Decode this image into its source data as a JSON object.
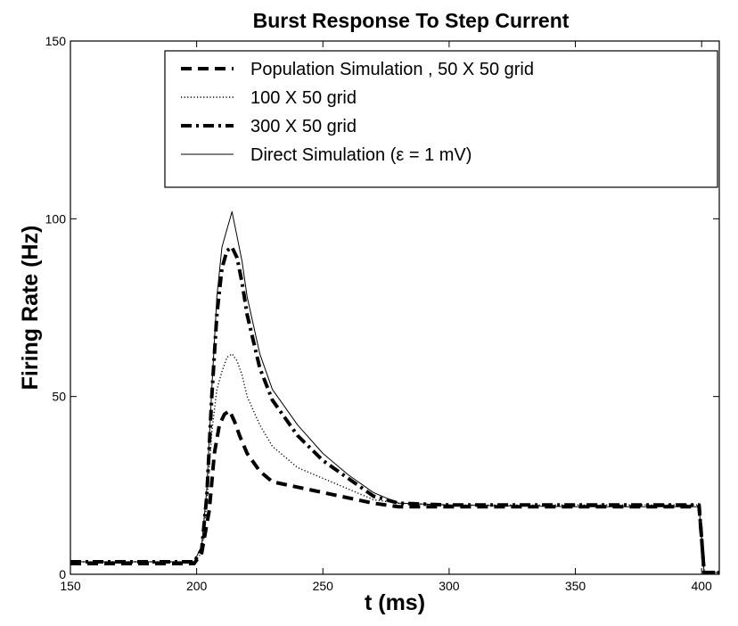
{
  "chart_data": {
    "type": "line",
    "title": "Burst Response To Step Current",
    "xlabel": "t  (ms)",
    "ylabel": "Firing Rate (Hz)",
    "xlim": [
      150,
      407
    ],
    "ylim": [
      0,
      150
    ],
    "xticks": [
      150,
      200,
      250,
      300,
      350,
      400
    ],
    "yticks": [
      0,
      50,
      100,
      150
    ],
    "grid": false,
    "legend_position": "top-right",
    "series": [
      {
        "name": "Population Simulation , 50 X 50 grid",
        "style": "dashed",
        "x": [
          150,
          199,
          202,
          205,
          207,
          209,
          211,
          213,
          215,
          217,
          220,
          225,
          230,
          240,
          250,
          260,
          270,
          280,
          290,
          300,
          350,
          399,
          400,
          401,
          407
        ],
        "y": [
          3,
          3,
          6,
          18,
          34,
          42,
          45,
          46,
          43,
          39,
          34,
          29,
          26,
          24.5,
          23,
          21.5,
          20,
          19,
          19,
          19,
          19,
          19,
          10,
          0.5,
          0.5
        ]
      },
      {
        "name": "100 X 50 grid",
        "style": "dotted",
        "x": [
          150,
          199,
          202,
          204,
          206,
          208,
          210,
          212,
          214,
          216,
          218,
          220,
          225,
          230,
          240,
          250,
          260,
          270,
          280,
          300,
          350,
          399,
          400,
          401,
          407
        ],
        "y": [
          3.5,
          3.5,
          6,
          20,
          40,
          52,
          57,
          61,
          62,
          60,
          56,
          50,
          42,
          36,
          30,
          27,
          24,
          21,
          20,
          19.5,
          19.5,
          19.5,
          10,
          0.5,
          0.5
        ]
      },
      {
        "name": "300 X 50 grid",
        "style": "dashdot",
        "x": [
          150,
          199,
          202,
          204,
          206,
          208,
          210,
          212,
          214,
          216,
          218,
          220,
          225,
          230,
          240,
          250,
          260,
          270,
          280,
          300,
          350,
          399,
          400,
          401,
          407
        ],
        "y": [
          3.5,
          3.5,
          7,
          22,
          50,
          73,
          86,
          91,
          92,
          89,
          82,
          73,
          58,
          49,
          39,
          32,
          27,
          22,
          20,
          19.5,
          19.5,
          19.5,
          10,
          0.5,
          0.5
        ]
      },
      {
        "name": "Direct Simulation (ε = 1 mV)",
        "style": "solid",
        "x": [
          150,
          199,
          202,
          204,
          206,
          208,
          210,
          212,
          214,
          216,
          218,
          220,
          225,
          230,
          240,
          250,
          260,
          270,
          280,
          300,
          350,
          399,
          400,
          401,
          407
        ],
        "y": [
          3.5,
          3.5,
          8,
          24,
          52,
          78,
          92,
          97,
          102,
          95,
          88,
          78,
          62,
          52,
          42,
          34,
          28,
          23,
          20,
          19.5,
          19,
          19,
          10,
          0.5,
          0.5
        ]
      }
    ]
  }
}
